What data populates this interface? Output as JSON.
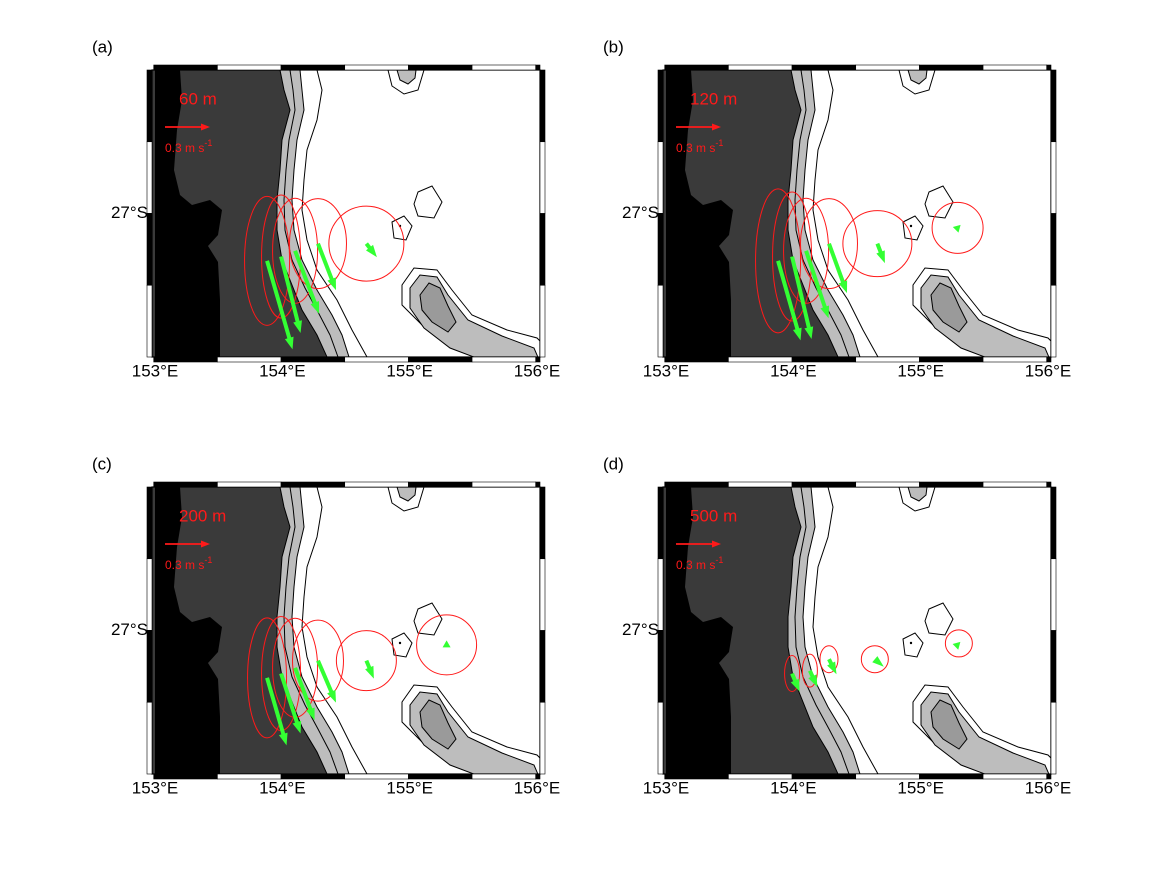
{
  "map": {
    "xlim": [
      153,
      156
    ],
    "ylim": [
      -28,
      -26
    ],
    "xticks": [
      {
        "value": 153,
        "label": "153°E"
      },
      {
        "value": 154,
        "label": "154°E"
      },
      {
        "value": 155,
        "label": "155°E"
      },
      {
        "value": 156,
        "label": "156°E"
      }
    ],
    "yticks": [
      {
        "value": -27,
        "label": "27°S"
      }
    ]
  },
  "scale": {
    "value": 0.3,
    "label": "0.3 m s",
    "exponent": "-1"
  },
  "panels": [
    {
      "label": "(a)",
      "depth": "60 m",
      "moorings": [
        {
          "lon": 153.88,
          "lat": -27.33,
          "u": 0.17,
          "v": -0.59,
          "ellipse_x": 0.15,
          "ellipse_y": 0.43
        },
        {
          "lon": 153.99,
          "lat": -27.3,
          "u": 0.13,
          "v": -0.51,
          "ellipse_x": 0.13,
          "ellipse_y": 0.41
        },
        {
          "lon": 154.1,
          "lat": -27.26,
          "u": 0.16,
          "v": -0.42,
          "ellipse_x": 0.15,
          "ellipse_y": 0.35
        },
        {
          "lon": 154.28,
          "lat": -27.21,
          "u": 0.12,
          "v": -0.31,
          "ellipse_x": 0.19,
          "ellipse_y": 0.3
        },
        {
          "lon": 154.66,
          "lat": -27.21,
          "u": 0.07,
          "v": -0.09,
          "ellipse_x": 0.25,
          "ellipse_y": 0.25
        }
      ]
    },
    {
      "label": "(b)",
      "depth": "120 m",
      "moorings": [
        {
          "lon": 153.88,
          "lat": -27.33,
          "u": 0.15,
          "v": -0.53,
          "ellipse_x": 0.15,
          "ellipse_y": 0.48
        },
        {
          "lon": 153.99,
          "lat": -27.3,
          "u": 0.13,
          "v": -0.55,
          "ellipse_x": 0.13,
          "ellipse_y": 0.43
        },
        {
          "lon": 154.1,
          "lat": -27.26,
          "u": 0.15,
          "v": -0.45,
          "ellipse_x": 0.15,
          "ellipse_y": 0.35
        },
        {
          "lon": 154.28,
          "lat": -27.21,
          "u": 0.12,
          "v": -0.33,
          "ellipse_x": 0.19,
          "ellipse_y": 0.3
        },
        {
          "lon": 154.66,
          "lat": -27.21,
          "u": 0.05,
          "v": -0.13,
          "ellipse_x": 0.23,
          "ellipse_y": 0.22
        },
        {
          "lon": 155.29,
          "lat": -27.1,
          "u": 0.02,
          "v": 0.02,
          "ellipse_x": 0.17,
          "ellipse_y": 0.17
        }
      ]
    },
    {
      "label": "(c)",
      "depth": "200 m",
      "moorings": [
        {
          "lon": 153.88,
          "lat": -27.33,
          "u": 0.13,
          "v": -0.45,
          "ellipse_x": 0.13,
          "ellipse_y": 0.4
        },
        {
          "lon": 153.99,
          "lat": -27.3,
          "u": 0.13,
          "v": -0.4,
          "ellipse_x": 0.13,
          "ellipse_y": 0.38
        },
        {
          "lon": 154.1,
          "lat": -27.26,
          "u": 0.13,
          "v": -0.35,
          "ellipse_x": 0.15,
          "ellipse_y": 0.33
        },
        {
          "lon": 154.28,
          "lat": -27.21,
          "u": 0.12,
          "v": -0.28,
          "ellipse_x": 0.17,
          "ellipse_y": 0.27
        },
        {
          "lon": 154.66,
          "lat": -27.21,
          "u": 0.05,
          "v": -0.12,
          "ellipse_x": 0.2,
          "ellipse_y": 0.2
        },
        {
          "lon": 155.29,
          "lat": -27.1,
          "u": 0.0,
          "v": 0.03,
          "ellipse_x": 0.2,
          "ellipse_y": 0.2
        }
      ]
    },
    {
      "label": "(d)",
      "depth": "500 m",
      "moorings": [
        {
          "lon": 153.99,
          "lat": -27.3,
          "u": 0.05,
          "v": -0.12,
          "ellipse_x": 0.05,
          "ellipse_y": 0.12
        },
        {
          "lon": 154.13,
          "lat": -27.28,
          "u": 0.05,
          "v": -0.11,
          "ellipse_x": 0.05,
          "ellipse_y": 0.11
        },
        {
          "lon": 154.28,
          "lat": -27.2,
          "u": 0.05,
          "v": -0.1,
          "ellipse_x": 0.06,
          "ellipse_y": 0.09
        },
        {
          "lon": 154.64,
          "lat": -27.2,
          "u": 0.06,
          "v": -0.05,
          "ellipse_x": 0.09,
          "ellipse_y": 0.09
        },
        {
          "lon": 155.3,
          "lat": -27.09,
          "u": 0.01,
          "v": 0.01,
          "ellipse_x": 0.09,
          "ellipse_y": 0.09
        }
      ]
    }
  ]
}
